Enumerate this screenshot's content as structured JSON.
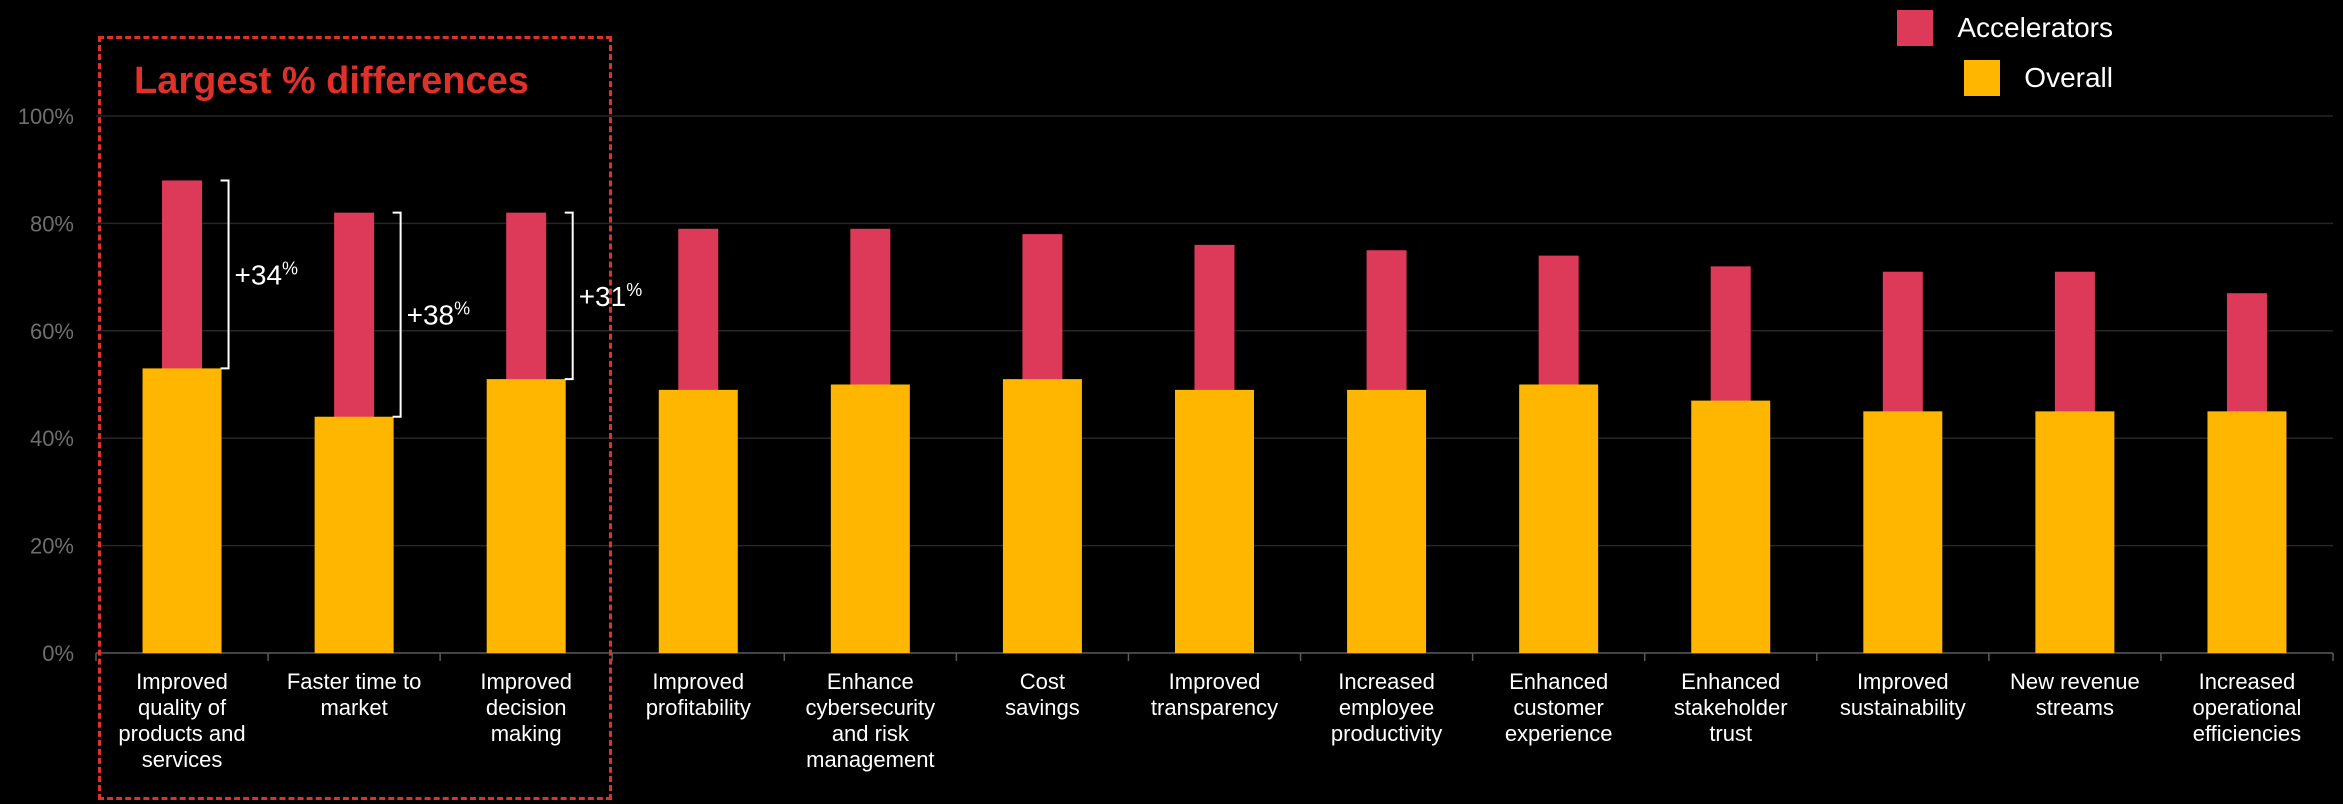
{
  "chart_data": {
    "type": "bar",
    "categories": [
      "Improved quality of products and services",
      "Faster time to market",
      "Improved decision making",
      "Improved profitability",
      "Enhance cybersecurity and risk management",
      "Cost savings",
      "Improved transparency",
      "Increased employee productivity",
      "Enhanced customer experience",
      "Enhanced stakeholder trust",
      "Improved sustainability",
      "New revenue streams",
      "Increased operational efficiencies"
    ],
    "category_lines": [
      [
        "Improved",
        "quality of",
        "products and",
        "services"
      ],
      [
        "Faster time to",
        "market"
      ],
      [
        "Improved",
        "decision",
        "making"
      ],
      [
        "Improved",
        "profitability"
      ],
      [
        "Enhance",
        "cybersecurity",
        "and risk",
        "management"
      ],
      [
        "Cost",
        "savings"
      ],
      [
        "Improved",
        "transparency"
      ],
      [
        "Increased",
        "employee",
        "productivity"
      ],
      [
        "Enhanced",
        "customer",
        "experience"
      ],
      [
        "Enhanced",
        "stakeholder",
        "trust"
      ],
      [
        "Improved",
        "sustainability"
      ],
      [
        "New revenue",
        "streams"
      ],
      [
        "Increased",
        "operational",
        "efficiencies"
      ]
    ],
    "series": [
      {
        "name": "Accelerators",
        "values": [
          88,
          82,
          82,
          79,
          79,
          78,
          76,
          75,
          74,
          72,
          71,
          71,
          67
        ],
        "color": "#dc3a58"
      },
      {
        "name": "Overall",
        "values": [
          53,
          44,
          51,
          49,
          50,
          51,
          49,
          49,
          50,
          47,
          45,
          45,
          45
        ],
        "color": "#ffb600"
      }
    ],
    "ylim": [
      0,
      100
    ],
    "yticks": [
      "0%",
      "20%",
      "40%",
      "60%",
      "80%",
      "100%"
    ],
    "grid": true,
    "legend_position": "top-right",
    "highlight": {
      "title": "Largest % differences",
      "color": "#e0302a",
      "differences": [
        {
          "label": "+34",
          "sup": "%"
        },
        {
          "label": "+38",
          "sup": "%"
        },
        {
          "label": "+31",
          "sup": "%"
        }
      ]
    }
  }
}
